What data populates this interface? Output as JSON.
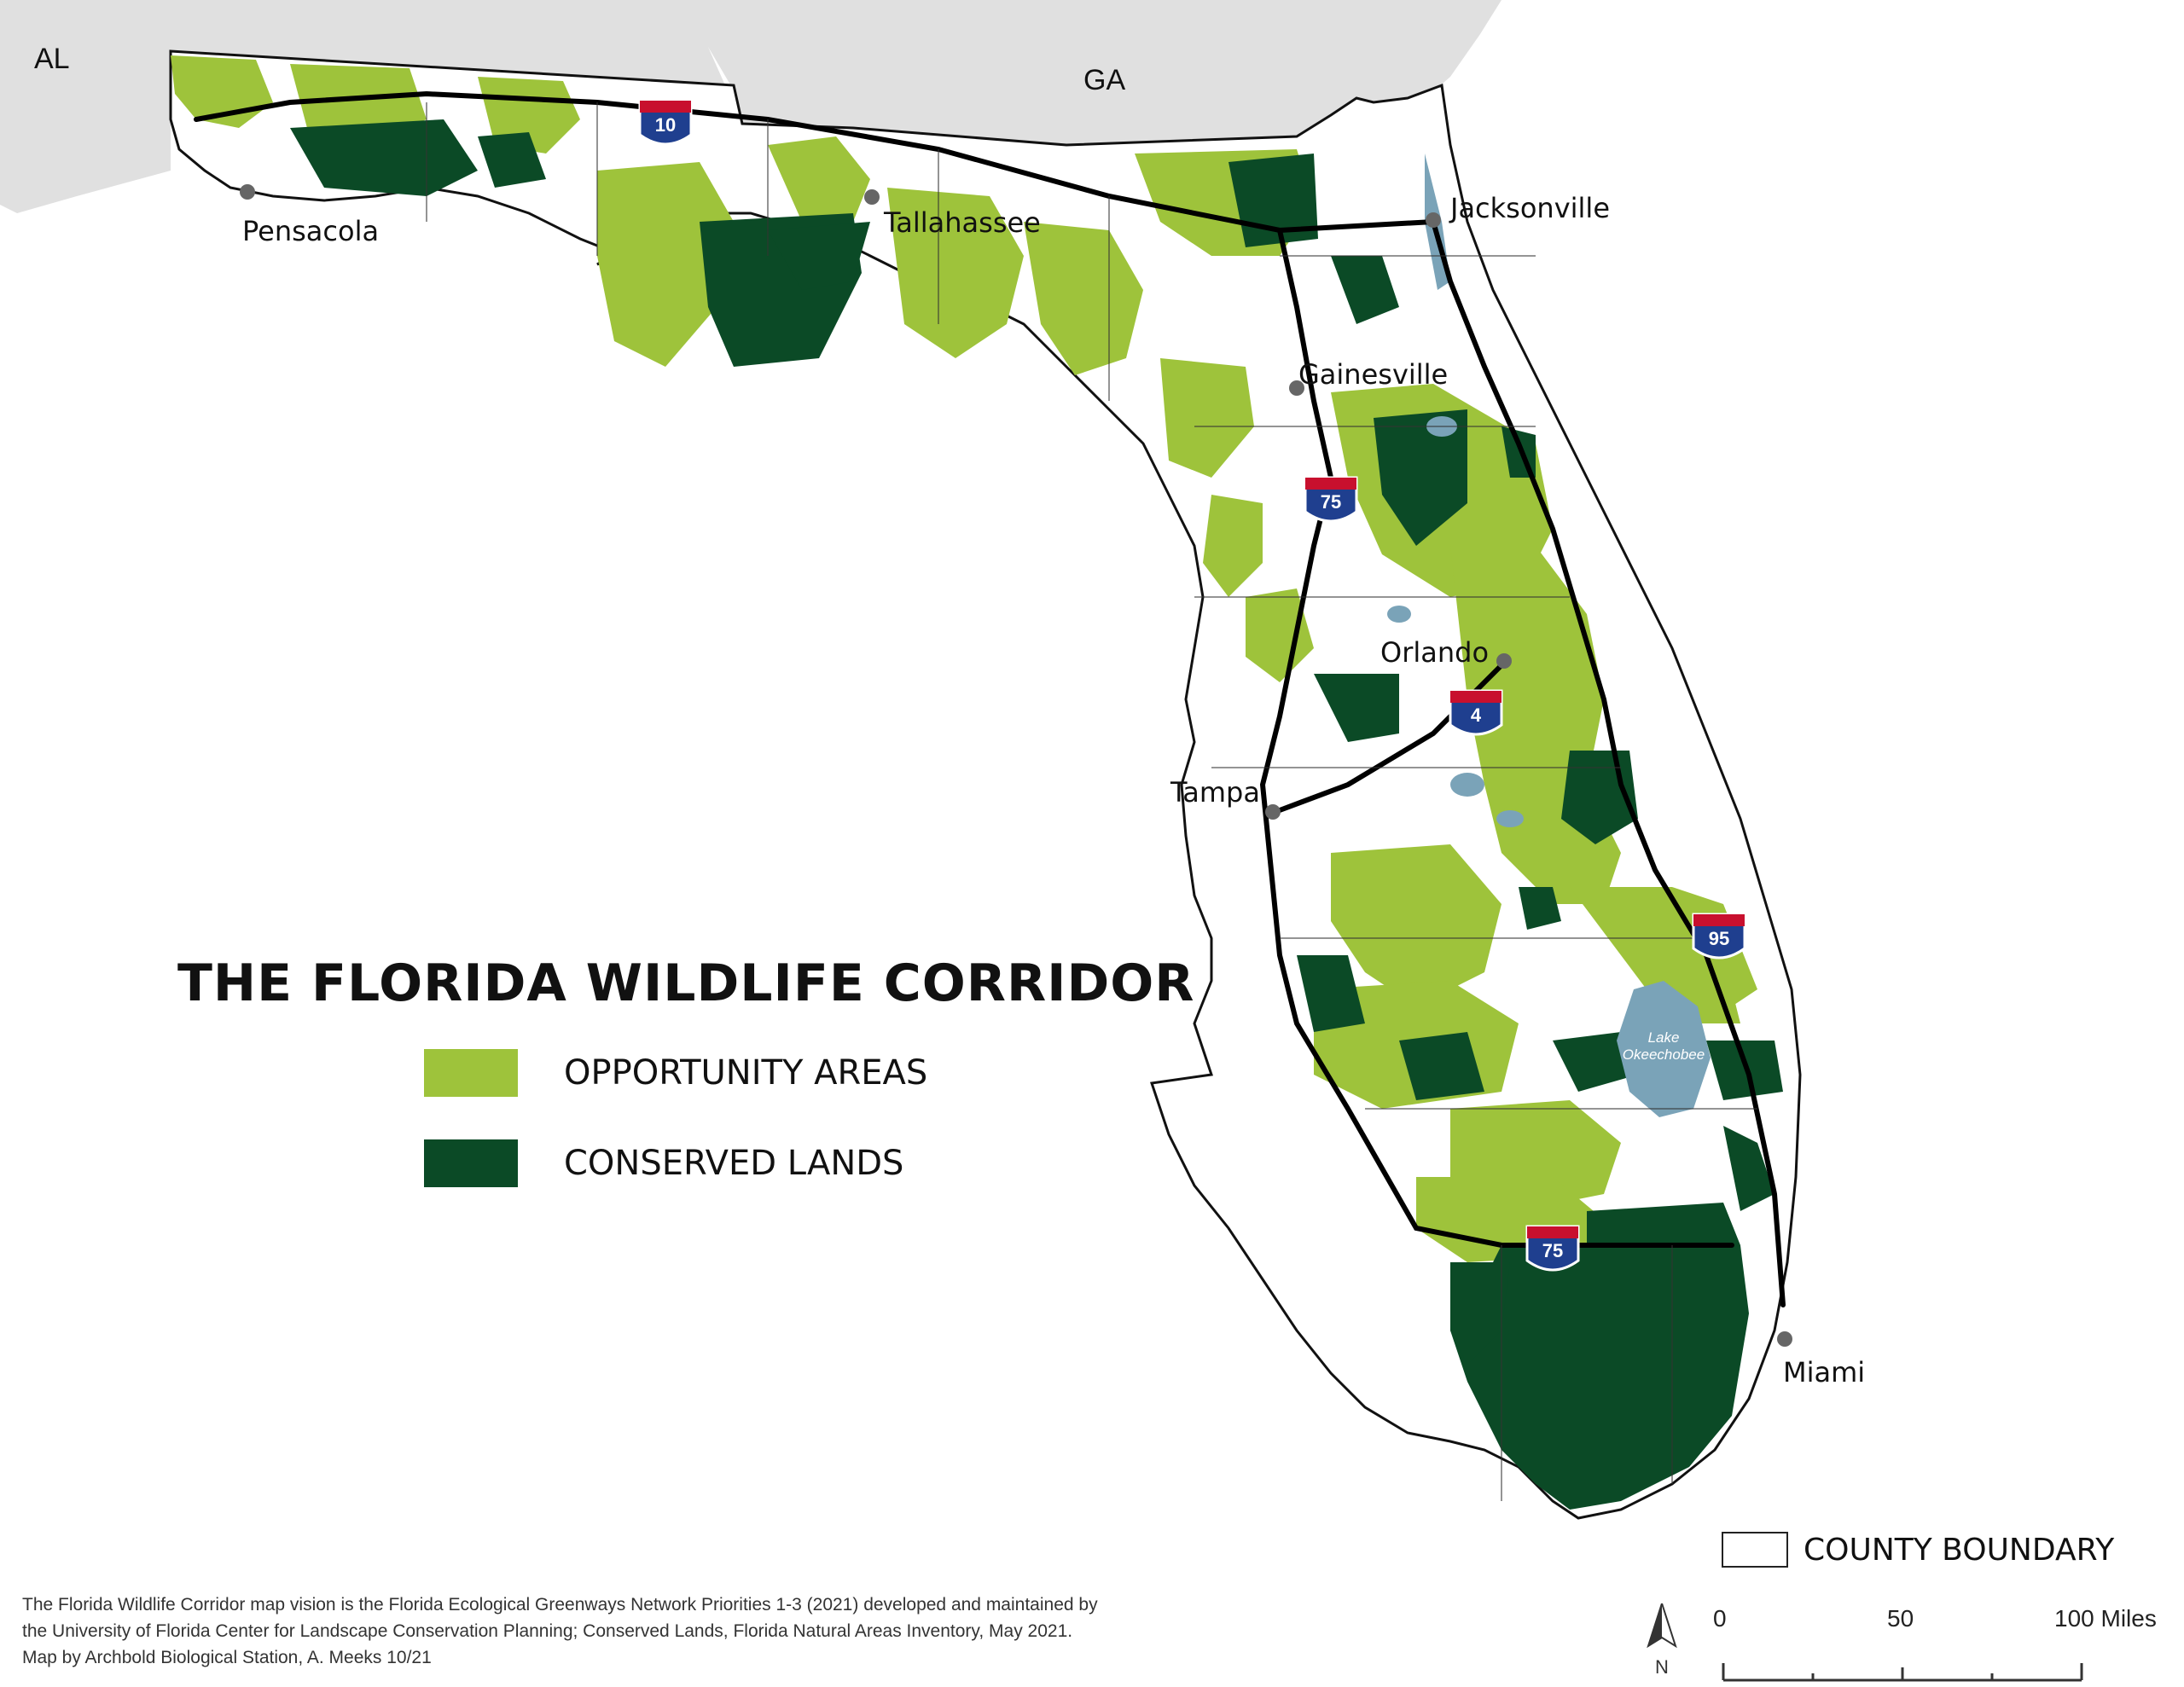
{
  "map": {
    "title": "THE FLORIDA WILDLIFE CORRIDOR",
    "states": [
      "AL",
      "GA"
    ],
    "colors": {
      "opportunity": "#9ec33b",
      "conserved": "#0b4a26",
      "water": "#7aa3b8",
      "neighbor_states": "#e0e0e0",
      "land": "#ffffff",
      "roads": "#000000",
      "shield_red": "#c8102e",
      "shield_blue": "#1f3f8f"
    },
    "legend": {
      "opportunity_label": "OPPORTUNITY AREAS",
      "conserved_label": "CONSERVED LANDS",
      "county_label": "COUNTY BOUNDARY"
    },
    "cities": [
      {
        "name": "Pensacola"
      },
      {
        "name": "Tallahassee"
      },
      {
        "name": "Jacksonville"
      },
      {
        "name": "Gainesville"
      },
      {
        "name": "Orlando"
      },
      {
        "name": "Tampa"
      },
      {
        "name": "Miami"
      }
    ],
    "lake_label_line1": "Lake",
    "lake_label_line2": "Okeechobee",
    "interstates": [
      "10",
      "75",
      "4",
      "95",
      "75"
    ],
    "scale": {
      "ticks": [
        "0",
        "50",
        "100 Miles"
      ]
    },
    "north_label": "N",
    "credits": [
      "The Florida Wildlife Corridor map vision is the Florida Ecological Greenways Network Priorities 1-3 (2021) developed and maintained by",
      "the University of Florida Center for Landscape Conservation Planning; Conserved Lands, Florida Natural Areas Inventory, May 2021.",
      "Map by Archbold Biological Station, A. Meeks 10/21"
    ]
  }
}
